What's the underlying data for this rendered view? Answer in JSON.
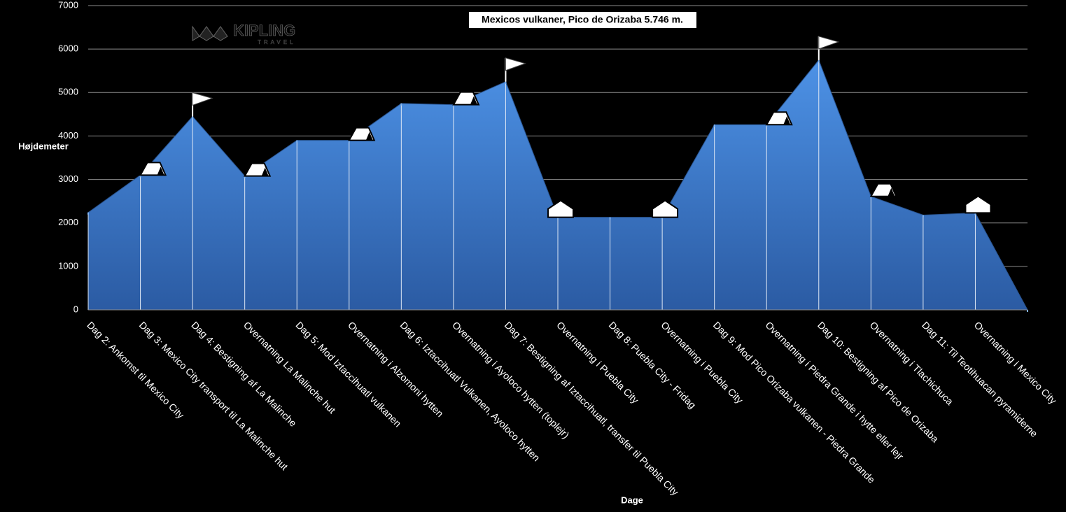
{
  "chart_data": {
    "type": "area",
    "title": "Mexicos vulkaner, Pico de Orizaba 5.746 m.",
    "logo": {
      "name": "KIPLING",
      "tagline": "TRAVEL"
    },
    "y_label": "Højdemeter",
    "x_label": "Dage",
    "categories": [
      "Dag 2: Ankomst til Mexico City",
      "Dag 3: Mexico City transport til La Malinche hut",
      "Dag 4: Bestigning af La Malinche",
      "Overnatning La Malinche hut",
      "Dag 5: Mod Iztaccihuatl vulkanen",
      "Overnatning i Alzomoni hytten",
      "Dag 6: Iztaccihuatl Vulkanen, Ayoloco hytten",
      "Overnatning i Ayoloco hytten (toplejr)",
      "Dag 7: Bestigning af Iztaccihuatl, transfer til Puebla City",
      "Overnatning i Puebla City",
      "Dag 8: Puebla City - Fridag",
      "Overnatning i Puebla City",
      "Dag 9: Mod Pico Orizaba vulkanen - Piedra Grande",
      "Overnatning i Piedra Grande i hytte eller lejr",
      "Dag 10: Bestigning af Pico de Orizaba",
      "Overnatning i Tlachichuca",
      "Dag 11: Til Teotihuacan pyramiderne",
      "Overnatning i Mexico City",
      null
    ],
    "values": [
      2240,
      3100,
      4450,
      3080,
      3900,
      3900,
      4750,
      4720,
      5250,
      2130,
      2130,
      2130,
      4260,
      4260,
      5746,
      2610,
      2180,
      2230,
      0
    ],
    "color": "#3f7fd4",
    "ylim": [
      0,
      7000
    ],
    "yticks": [
      0,
      1000,
      2000,
      3000,
      4000,
      5000,
      6000,
      7000
    ],
    "grid": true
  }
}
